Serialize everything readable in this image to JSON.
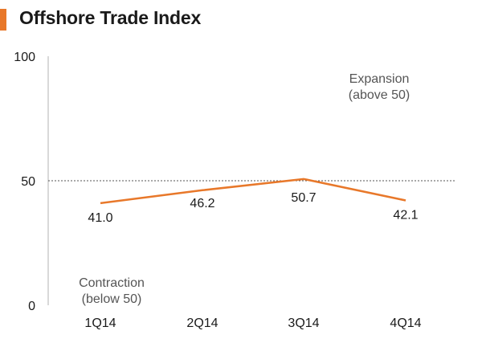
{
  "header": {
    "title": "Offshore Trade Index",
    "accent_color": "#e8782a"
  },
  "chart_data": {
    "type": "line",
    "title": "Offshore Trade Index",
    "categories": [
      "1Q14",
      "2Q14",
      "3Q14",
      "4Q14"
    ],
    "series": [
      {
        "name": "Offshore Trade Index",
        "values": [
          41.0,
          46.2,
          50.7,
          42.1
        ],
        "color": "#e8782a"
      }
    ],
    "data_labels": [
      "41.0",
      "46.2",
      "50.7",
      "42.1"
    ],
    "y_ticks": [
      "0",
      "50",
      "100"
    ],
    "ylim": [
      0,
      100
    ],
    "reference_line": {
      "value": 50,
      "style": "dotted"
    },
    "annotations": {
      "expansion": [
        "Expansion",
        "(above 50)"
      ],
      "contraction": [
        "Contraction",
        "(below 50)"
      ]
    },
    "xlabel": "",
    "ylabel": "",
    "grid": false,
    "legend": "none"
  }
}
